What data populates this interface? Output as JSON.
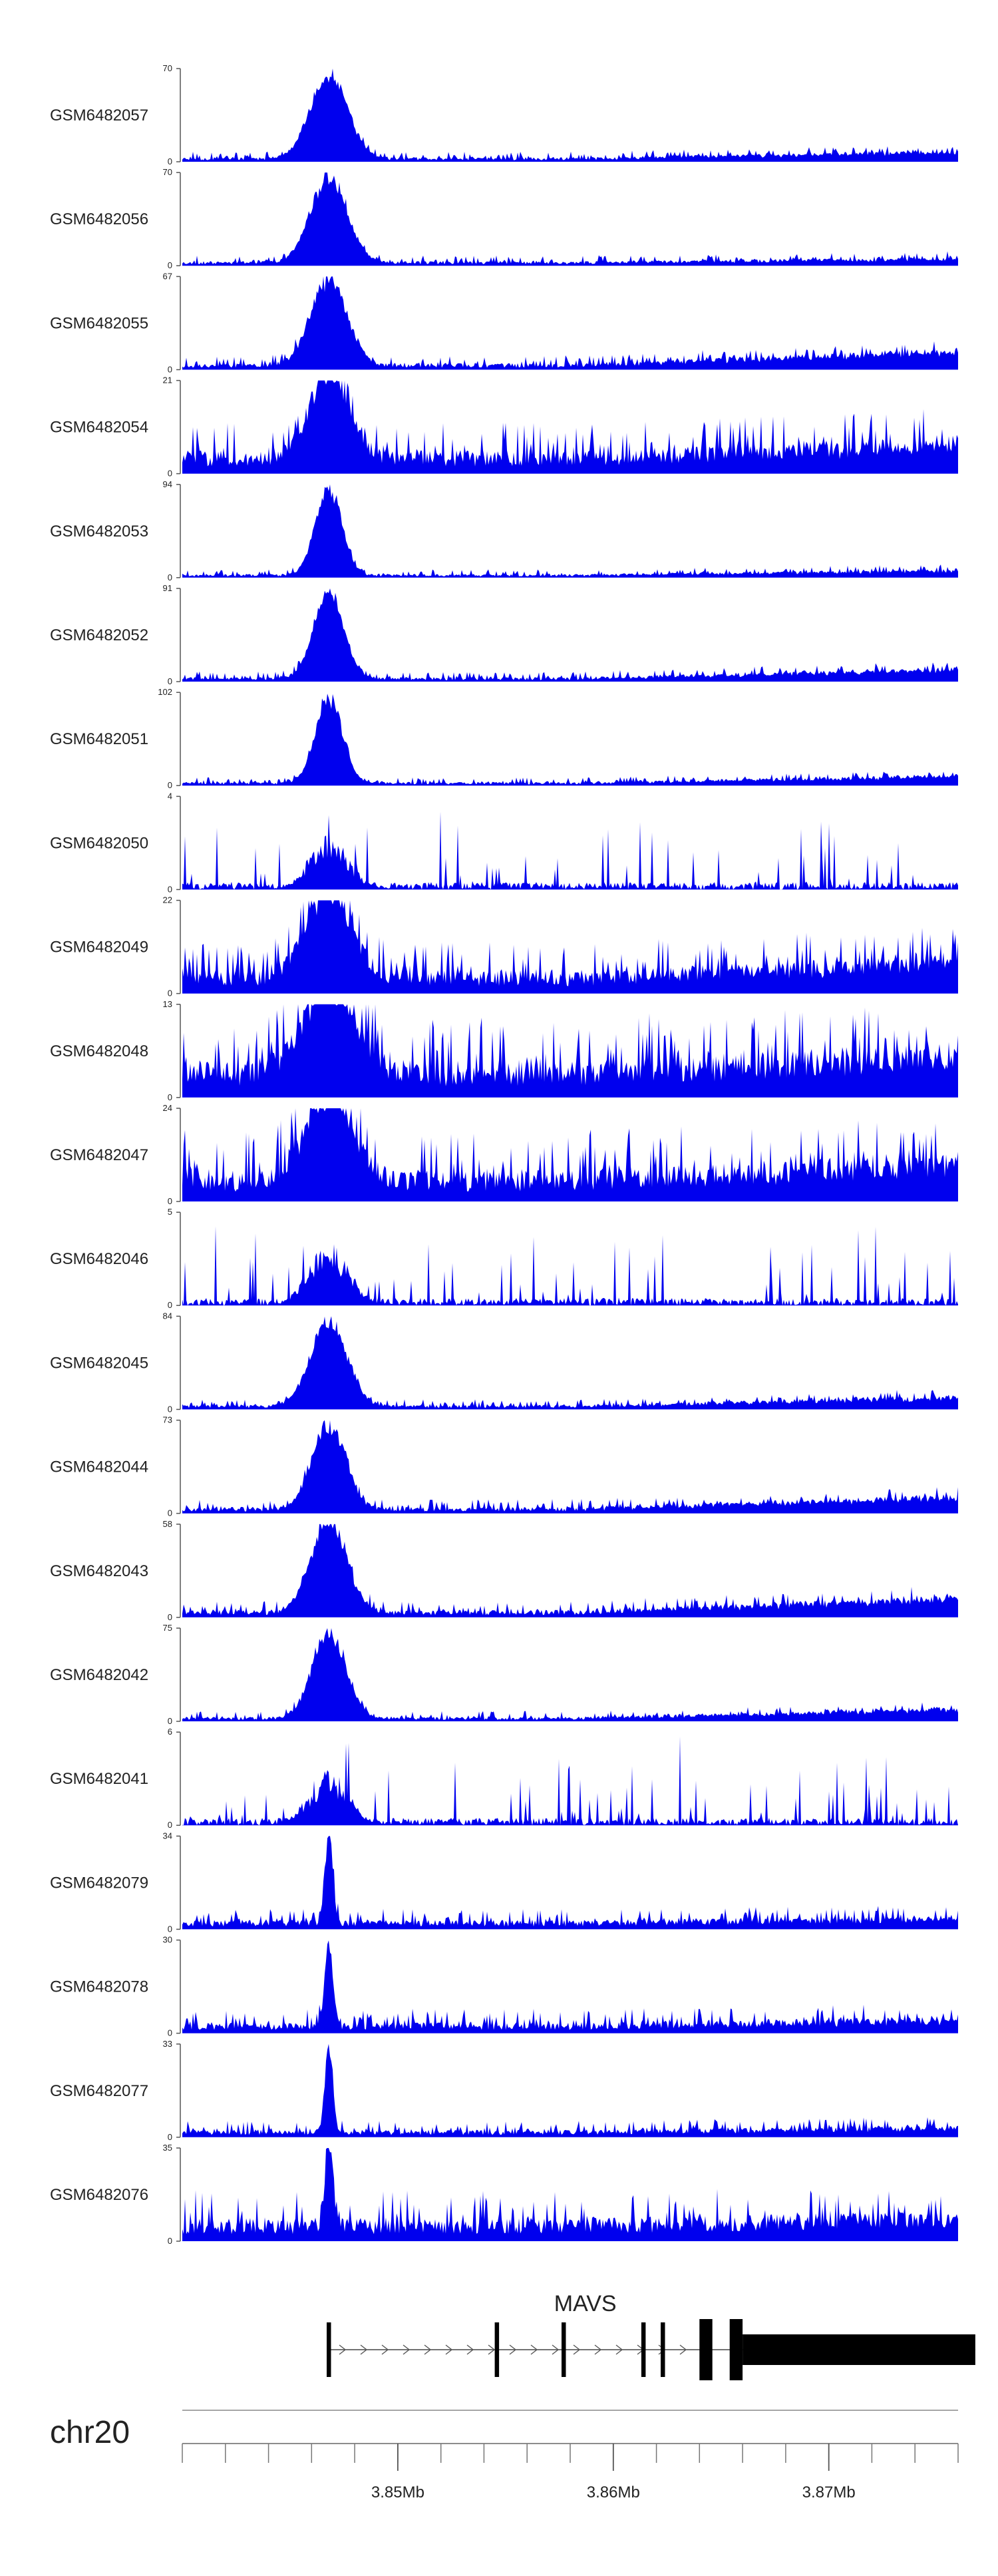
{
  "chart_data": {
    "type": "area",
    "title": "",
    "color": "#0000ee",
    "tracks": [
      {
        "name": "GSM6482057",
        "ymax": "70",
        "ymin": "0",
        "peak": 1.0,
        "noise": 0.05,
        "trend": 0.15,
        "width": 55,
        "seed": 11
      },
      {
        "name": "GSM6482056",
        "ymax": "70",
        "ymin": "0",
        "peak": 1.0,
        "noise": 0.05,
        "trend": 0.08,
        "width": 55,
        "seed": 23
      },
      {
        "name": "GSM6482055",
        "ymax": "67",
        "ymin": "0",
        "peak": 1.0,
        "noise": 0.07,
        "trend": 0.3,
        "width": 55,
        "seed": 37
      },
      {
        "name": "GSM6482054",
        "ymax": "21",
        "ymin": "0",
        "peak": 1.0,
        "noise": 0.25,
        "trend": 0.3,
        "width": 60,
        "seed": 41
      },
      {
        "name": "GSM6482053",
        "ymax": "94",
        "ymin": "0",
        "peak": 1.0,
        "noise": 0.04,
        "trend": 0.1,
        "width": 40,
        "seed": 53
      },
      {
        "name": "GSM6482052",
        "ymax": "91",
        "ymin": "0",
        "peak": 1.0,
        "noise": 0.05,
        "trend": 0.2,
        "width": 45,
        "seed": 61
      },
      {
        "name": "GSM6482051",
        "ymax": "102",
        "ymin": "0",
        "peak": 1.0,
        "noise": 0.04,
        "trend": 0.15,
        "width": 40,
        "seed": 71
      },
      {
        "name": "GSM6482050",
        "ymax": "4",
        "ymin": "0",
        "peak": 0.6,
        "noise": 0.8,
        "trend": 0.0,
        "width": 60,
        "seed": 83
      },
      {
        "name": "GSM6482049",
        "ymax": "22",
        "ymin": "0",
        "peak": 1.0,
        "noise": 0.25,
        "trend": 0.35,
        "width": 70,
        "seed": 97
      },
      {
        "name": "GSM6482048",
        "ymax": "13",
        "ymin": "0",
        "peak": 1.0,
        "noise": 0.4,
        "trend": 0.35,
        "width": 80,
        "seed": 101
      },
      {
        "name": "GSM6482047",
        "ymax": "24",
        "ymin": "0",
        "peak": 1.0,
        "noise": 0.35,
        "trend": 0.35,
        "width": 70,
        "seed": 113
      },
      {
        "name": "GSM6482046",
        "ymax": "5",
        "ymin": "0",
        "peak": 0.7,
        "noise": 0.8,
        "trend": 0.0,
        "width": 60,
        "seed": 127
      },
      {
        "name": "GSM6482045",
        "ymax": "84",
        "ymin": "0",
        "peak": 1.0,
        "noise": 0.05,
        "trend": 0.2,
        "width": 55,
        "seed": 131
      },
      {
        "name": "GSM6482044",
        "ymax": "73",
        "ymin": "0",
        "peak": 1.0,
        "noise": 0.07,
        "trend": 0.25,
        "width": 50,
        "seed": 139
      },
      {
        "name": "GSM6482043",
        "ymax": "58",
        "ymin": "0",
        "peak": 1.0,
        "noise": 0.08,
        "trend": 0.3,
        "width": 55,
        "seed": 149
      },
      {
        "name": "GSM6482042",
        "ymax": "75",
        "ymin": "0",
        "peak": 1.0,
        "noise": 0.05,
        "trend": 0.2,
        "width": 50,
        "seed": 157
      },
      {
        "name": "GSM6482041",
        "ymax": "6",
        "ymin": "0",
        "peak": 0.6,
        "noise": 0.8,
        "trend": 0.0,
        "width": 60,
        "seed": 163
      },
      {
        "name": "GSM6482079",
        "ymax": "34",
        "ymin": "0",
        "peak": 1.0,
        "noise": 0.1,
        "trend": 0.1,
        "width": 12,
        "seed": 173
      },
      {
        "name": "GSM6482078",
        "ymax": "30",
        "ymin": "0",
        "peak": 1.0,
        "noise": 0.12,
        "trend": 0.12,
        "width": 12,
        "seed": 181
      },
      {
        "name": "GSM6482077",
        "ymax": "33",
        "ymin": "0",
        "peak": 1.0,
        "noise": 0.08,
        "trend": 0.1,
        "width": 12,
        "seed": 191
      },
      {
        "name": "GSM6482076",
        "ymax": "35",
        "ymin": "0",
        "peak": 1.0,
        "noise": 0.25,
        "trend": 0.15,
        "width": 12,
        "seed": 199
      }
    ],
    "gene": {
      "name": "MAVS",
      "start_mb": 3.8467,
      "end_mb": 3.8768,
      "exons_mb": [
        [
          3.8467,
          3.8469
        ],
        [
          3.8545,
          3.8547
        ],
        [
          3.8576,
          3.8578
        ],
        [
          3.8613,
          3.8615
        ],
        [
          3.8622,
          3.8624
        ],
        [
          3.864,
          3.8646
        ],
        [
          3.8654,
          3.866
        ],
        [
          3.866,
          3.8768
        ]
      ]
    },
    "chromosome": "chr20",
    "x_range_mb": [
      3.84,
      3.876
    ],
    "x_ticks": [
      "3.85Mb",
      "3.86Mb",
      "3.87Mb"
    ],
    "x_ticks_mb": [
      3.85,
      3.86,
      3.87
    ],
    "minor_tick_step_mb": 0.002
  }
}
